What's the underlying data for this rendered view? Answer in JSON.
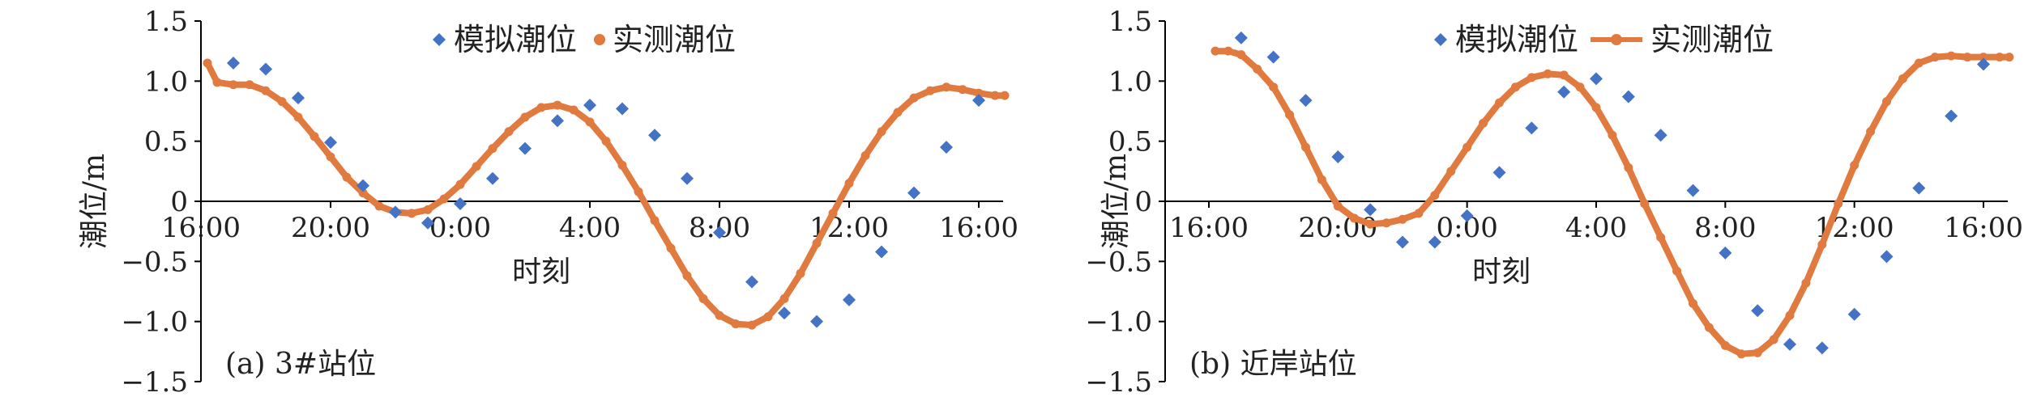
{
  "chart_data": [
    {
      "type": "scatter+line",
      "panel_label": "(a) 3#站位",
      "xlabel": "时刻",
      "ylabel": "潮位/m",
      "xticks": [
        "16:00",
        "20:00",
        "0:00",
        "4:00",
        "8:00",
        "12:00",
        "16:00"
      ],
      "yticks": [
        "1.5",
        "1.0",
        "0.5",
        "0",
        "−0.5",
        "−1.0",
        "−1.5"
      ],
      "ylim": [
        -1.5,
        1.5
      ],
      "xlim_hours": [
        16,
        41
      ],
      "legend_position": "top-right",
      "series": [
        {
          "name": "模拟潮位",
          "kind": "markers",
          "marker": "diamond",
          "color": "#4472C4",
          "x": [
            17,
            18,
            19,
            20,
            21,
            22,
            23,
            24,
            25,
            26,
            27,
            28,
            29,
            30,
            31,
            32,
            33,
            34,
            35,
            36,
            37,
            38,
            39,
            40
          ],
          "y": [
            1.15,
            1.1,
            0.86,
            0.49,
            0.13,
            -0.09,
            -0.18,
            -0.02,
            0.19,
            0.44,
            0.67,
            0.8,
            0.77,
            0.55,
            0.19,
            -0.26,
            -0.67,
            -0.93,
            -1.0,
            -0.82,
            -0.42,
            0.07,
            0.45,
            0.84
          ]
        },
        {
          "name": "实测潮位",
          "kind": "line-dots",
          "color": "#E07A3F",
          "x": [
            16.2,
            16.5,
            17.0,
            17.5,
            18.0,
            18.5,
            19.0,
            19.5,
            20.0,
            20.5,
            21.0,
            21.5,
            22.0,
            22.5,
            23.0,
            23.5,
            24.0,
            24.5,
            25.0,
            25.5,
            26.0,
            26.5,
            27.0,
            27.5,
            28.0,
            28.5,
            29.0,
            29.5,
            30.0,
            30.5,
            31.0,
            31.5,
            32.0,
            32.5,
            33.0,
            33.5,
            34.0,
            34.5,
            35.0,
            35.5,
            36.0,
            36.5,
            37.0,
            37.5,
            38.0,
            38.5,
            39.0,
            39.5,
            40.0,
            40.5,
            40.8
          ],
          "y": [
            1.15,
            0.99,
            0.97,
            0.97,
            0.92,
            0.83,
            0.7,
            0.54,
            0.37,
            0.2,
            0.07,
            -0.04,
            -0.09,
            -0.1,
            -0.07,
            0.02,
            0.14,
            0.29,
            0.44,
            0.58,
            0.7,
            0.78,
            0.8,
            0.76,
            0.66,
            0.5,
            0.3,
            0.08,
            -0.16,
            -0.39,
            -0.62,
            -0.81,
            -0.95,
            -1.02,
            -1.03,
            -0.96,
            -0.81,
            -0.6,
            -0.35,
            -0.1,
            0.15,
            0.38,
            0.58,
            0.74,
            0.86,
            0.92,
            0.95,
            0.93,
            0.9,
            0.88,
            0.88
          ]
        }
      ]
    },
    {
      "type": "scatter+line",
      "panel_label": "(b) 近岸站位",
      "xlabel": "时刻",
      "ylabel": "潮位/m",
      "xticks": [
        "16:00",
        "20:00",
        "0:00",
        "4:00",
        "8:00",
        "12:00",
        "16:00"
      ],
      "yticks": [
        "1.5",
        "1.0",
        "0.5",
        "0",
        "−0.5",
        "−1.0",
        "−1.5"
      ],
      "ylim": [
        -1.5,
        1.5
      ],
      "xlim_hours": [
        16,
        41
      ],
      "legend_position": "top-right",
      "series": [
        {
          "name": "模拟潮位",
          "kind": "markers",
          "marker": "diamond",
          "color": "#4472C4",
          "x": [
            17,
            18,
            19,
            20,
            21,
            22,
            23,
            24,
            25,
            26,
            27,
            28,
            29,
            30,
            31,
            32,
            33,
            34,
            35,
            36,
            37,
            38,
            39,
            40
          ],
          "y": [
            1.36,
            1.2,
            0.84,
            0.37,
            -0.07,
            -0.34,
            -0.34,
            -0.12,
            0.24,
            0.61,
            0.91,
            1.02,
            0.87,
            0.55,
            0.09,
            -0.43,
            -0.91,
            -1.19,
            -1.22,
            -0.94,
            -0.46,
            0.11,
            0.71,
            1.14
          ]
        },
        {
          "name": "实测潮位",
          "kind": "line-dots",
          "color": "#E07A3F",
          "x": [
            16.2,
            16.6,
            17.0,
            17.5,
            18.0,
            18.5,
            19.0,
            19.5,
            20.0,
            20.5,
            21.0,
            21.5,
            22.0,
            22.5,
            23.0,
            23.5,
            24.0,
            24.5,
            25.0,
            25.5,
            26.0,
            26.5,
            27.0,
            27.5,
            28.0,
            28.5,
            29.0,
            29.5,
            30.0,
            30.5,
            31.0,
            31.5,
            32.0,
            32.5,
            33.0,
            33.5,
            34.0,
            34.5,
            35.0,
            35.5,
            36.0,
            36.5,
            37.0,
            37.5,
            38.0,
            38.5,
            39.0,
            39.5,
            40.0,
            40.5,
            40.8
          ],
          "y": [
            1.25,
            1.25,
            1.22,
            1.1,
            0.95,
            0.72,
            0.45,
            0.18,
            -0.04,
            -0.14,
            -0.19,
            -0.18,
            -0.15,
            -0.1,
            0.05,
            0.25,
            0.45,
            0.65,
            0.82,
            0.95,
            1.03,
            1.06,
            1.05,
            0.95,
            0.78,
            0.55,
            0.28,
            -0.02,
            -0.3,
            -0.58,
            -0.85,
            -1.05,
            -1.2,
            -1.27,
            -1.26,
            -1.15,
            -0.95,
            -0.68,
            -0.36,
            -0.02,
            0.3,
            0.58,
            0.83,
            1.02,
            1.15,
            1.2,
            1.21,
            1.2,
            1.2,
            1.2,
            1.2
          ]
        }
      ]
    }
  ]
}
